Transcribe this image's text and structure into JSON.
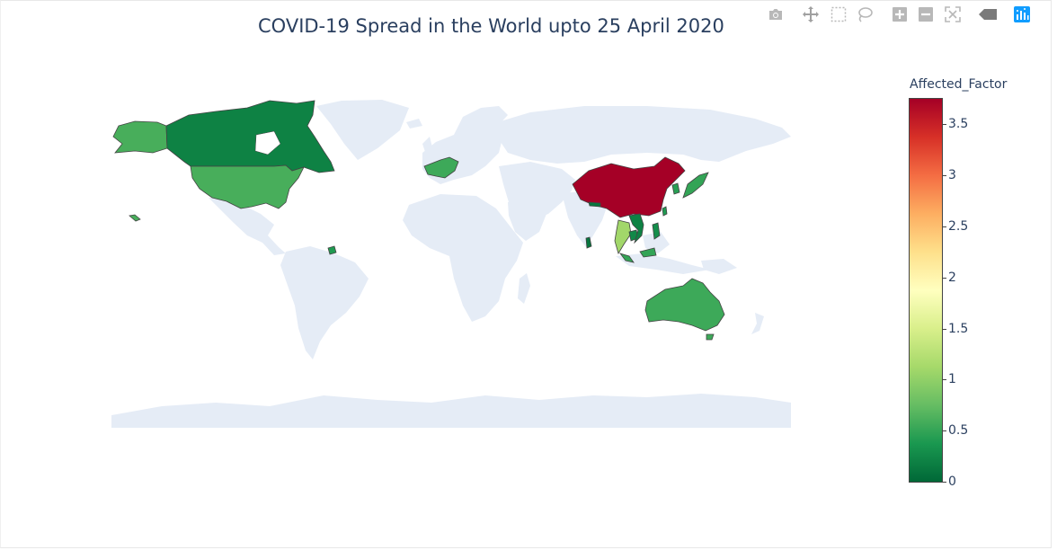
{
  "title": "COVID-19 Spread in the World upto 25 April 2020",
  "modebar": {
    "buttons": [
      {
        "name": "camera-icon"
      },
      {
        "name": "pan-icon"
      },
      {
        "name": "box-select-icon"
      },
      {
        "name": "lasso-icon"
      },
      {
        "name": "zoom-in-icon"
      },
      {
        "name": "zoom-out-icon"
      },
      {
        "name": "autoscale-icon"
      },
      {
        "name": "reset-icon"
      },
      {
        "name": "plotly-logo-icon"
      }
    ]
  },
  "colorbar": {
    "title": "Affected_Factor",
    "min": 0,
    "max": 3.75,
    "ticks": [
      "0",
      "0.5",
      "1",
      "1.5",
      "2",
      "2.5",
      "3",
      "3.5"
    ],
    "colorscale": [
      "#006837",
      "#1a9850",
      "#66bd63",
      "#a6d96a",
      "#d9ef8b",
      "#ffffbf",
      "#fee08b",
      "#fdae61",
      "#f46d43",
      "#d73027",
      "#a50026"
    ]
  },
  "colors": {
    "land": "#e5ecf6",
    "border": "#444444",
    "title": "#2a3f5f"
  },
  "chart_data": {
    "type": "choropleth",
    "z_key": "Affected_Factor",
    "regions": [
      {
        "id": "canada",
        "value": 0.2
      },
      {
        "id": "alaska",
        "value": 0.6
      },
      {
        "id": "usa",
        "value": 0.6
      },
      {
        "id": "china",
        "value": 3.75
      },
      {
        "id": "australia",
        "value": 0.55
      },
      {
        "id": "france",
        "value": 0.55
      },
      {
        "id": "japan",
        "value": 0.5
      },
      {
        "id": "thailand",
        "value": 1.1
      },
      {
        "id": "vietnam",
        "value": 0.2
      },
      {
        "id": "cambodia",
        "value": 0.25
      },
      {
        "id": "malaysia",
        "value": 0.5
      },
      {
        "id": "sri-lanka",
        "value": 0.1
      },
      {
        "id": "philippines",
        "value": 0.3
      },
      {
        "id": "taiwan",
        "value": 0.4
      },
      {
        "id": "korea",
        "value": 0.45
      },
      {
        "id": "nepal",
        "value": 0.1
      },
      {
        "id": "tasmania",
        "value": 0.55
      },
      {
        "id": "hawaii",
        "value": 0.6
      },
      {
        "id": "caribbean",
        "value": 0.4
      }
    ]
  }
}
